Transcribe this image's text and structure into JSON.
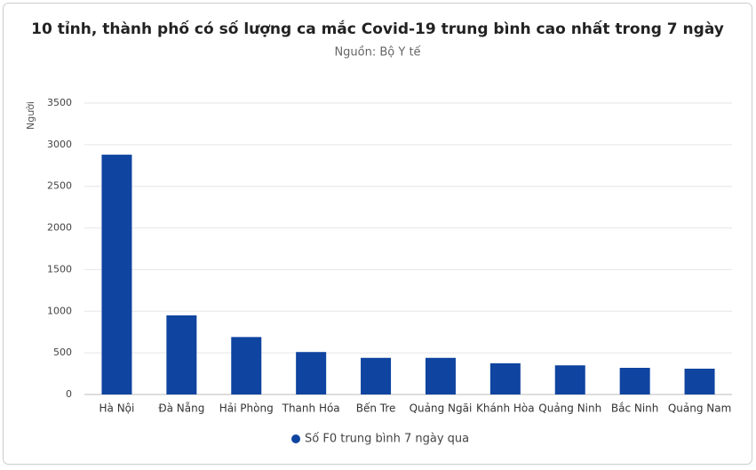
{
  "chart_data": {
    "type": "bar",
    "title": "10 tỉnh, thành phố có số lượng ca mắc Covid-19 trung bình cao nhất trong 7 ngày",
    "subtitle": "Nguồn: Bộ Y tế",
    "y_label": "Người",
    "categories": [
      "Hà Nội",
      "Đà Nẵng",
      "Hải Phòng",
      "Thanh Hóa",
      "Bến Tre",
      "Quảng Ngãi",
      "Khánh Hòa",
      "Quảng Ninh",
      "Bắc Ninh",
      "Quảng Nam"
    ],
    "series": [
      {
        "name": "Số F0 trung bình 7 ngày qua",
        "color": "#0f44a0",
        "values": [
          2880,
          950,
          690,
          510,
          440,
          440,
          375,
          350,
          320,
          310
        ]
      }
    ],
    "ylim": [
      0,
      3500
    ],
    "yticks": [
      0,
      500,
      1000,
      1500,
      2000,
      2500,
      3000,
      3500
    ],
    "grid": true,
    "legend": "bottom"
  }
}
